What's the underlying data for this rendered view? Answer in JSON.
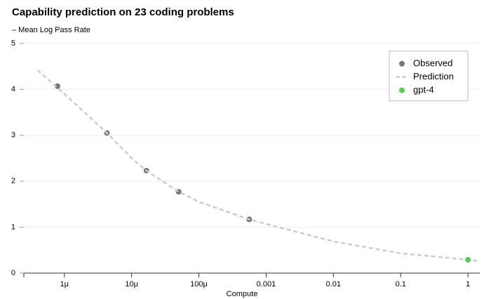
{
  "chart_data": {
    "type": "scatter",
    "title": "Capability prediction on 23 coding problems",
    "subtitle": "– Mean Log Pass Rate",
    "x_label": "Compute",
    "xscale": "log",
    "xlim": [
      2.5e-07,
      1.5
    ],
    "xticks": [
      {
        "value": 1e-06,
        "label": "1μ"
      },
      {
        "value": 1e-05,
        "label": "10μ"
      },
      {
        "value": 0.0001,
        "label": "100μ"
      },
      0.001,
      0.01,
      0.1,
      1
    ],
    "ylim": [
      0,
      5
    ],
    "yticks": [
      0,
      1,
      2,
      3,
      4,
      5
    ],
    "grid": true,
    "legend": "upper right",
    "series": [
      {
        "name": "Observed",
        "color": "#777777",
        "style": "markers",
        "x": [
          7.9e-07,
          4.3e-06,
          1.66e-05,
          5e-05,
          0.00056
        ],
        "values": [
          4.07,
          3.05,
          2.23,
          1.77,
          1.17
        ]
      },
      {
        "name": "Prediction",
        "color": "#cccccc",
        "style": "dashed",
        "x": [
          4e-07,
          1e-06,
          4.3e-06,
          1e-05,
          1.66e-05,
          5e-05,
          0.0001,
          0.00056,
          0.001,
          0.01,
          0.1,
          1,
          1.5
        ],
        "values": [
          4.42,
          3.9,
          3.05,
          2.5,
          2.23,
          1.77,
          1.55,
          1.17,
          1.07,
          0.69,
          0.43,
          0.29,
          0.26
        ]
      },
      {
        "name": "gpt-4",
        "color": "#55cc55",
        "style": "markers",
        "x": [
          1
        ],
        "values": [
          0.29
        ]
      }
    ]
  }
}
